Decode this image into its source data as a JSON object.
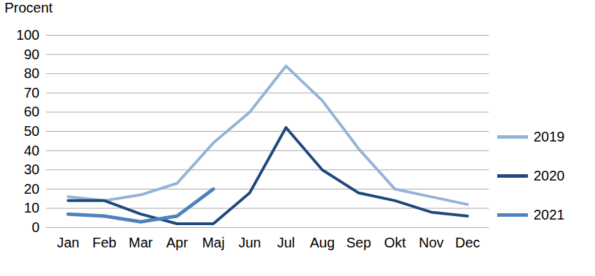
{
  "chart_data": {
    "type": "line",
    "y_label": "Procent",
    "categories": [
      "Jan",
      "Feb",
      "Mar",
      "Apr",
      "Maj",
      "Jun",
      "Jul",
      "Aug",
      "Sep",
      "Okt",
      "Nov",
      "Dec"
    ],
    "series": [
      {
        "name": "2019",
        "color": "#95b3d7",
        "values": [
          16,
          14,
          17,
          23,
          44,
          60,
          84,
          66,
          41,
          20,
          16,
          12
        ]
      },
      {
        "name": "2020",
        "color": "#1f497d",
        "values": [
          14,
          14,
          7,
          2,
          2,
          18,
          52,
          30,
          18,
          14,
          8,
          6
        ]
      },
      {
        "name": "2021",
        "color": "#4f81bd",
        "values": [
          7,
          6,
          3,
          6,
          20,
          null,
          null,
          null,
          null,
          null,
          null,
          null
        ]
      }
    ],
    "ylim": [
      0,
      100
    ],
    "yticks": [
      0,
      10,
      20,
      30,
      40,
      50,
      60,
      70,
      80,
      90,
      100
    ],
    "grid": true,
    "legend": "right"
  }
}
